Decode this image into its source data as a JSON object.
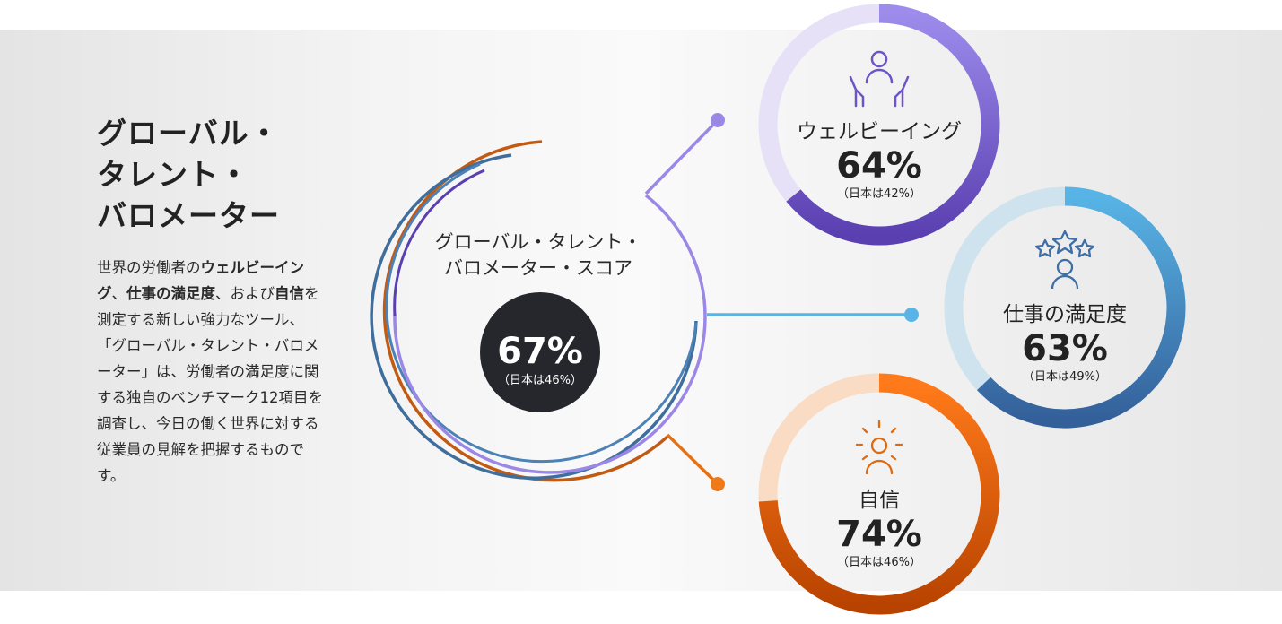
{
  "page": {
    "title": "グローバル・\nタレント・\nバロメーター",
    "description": [
      {
        "text": "世界の労働者の",
        "bold": false
      },
      {
        "text": "ウェルビーイング",
        "bold": true
      },
      {
        "text": "、",
        "bold": false
      },
      {
        "text": "仕事の満足度",
        "bold": true
      },
      {
        "text": "、および",
        "bold": false
      },
      {
        "text": "自信",
        "bold": true
      },
      {
        "text": "を測定する新しい強力なツール、「グローバル・タレント・バロメーター」は、労働者の満足度に関する独自のベンチマーク12項目を調査し、今日の働く世界に対する従業員の見解を把握するものです。",
        "bold": false
      }
    ]
  },
  "chart_data": {
    "type": "pie",
    "overall": {
      "label": "グローバル・タレント・\nバロメーター・スコア",
      "value": 67,
      "value_text": "67%",
      "japan_value": 46,
      "japan_text": "（日本は46%）"
    },
    "categories": [
      "ウェルビーイング",
      "仕事の満足度",
      "自信"
    ],
    "series": [
      {
        "name": "ウェルビーイング",
        "value": 64,
        "value_text": "64%",
        "japan_value": 42,
        "japan_text": "（日本は42%）",
        "icon": "hands-person-icon",
        "color_light": "#e6e1f6",
        "color_start": "#9d8cec",
        "color_end": "#5a3fb0"
      },
      {
        "name": "仕事の満足度",
        "value": 63,
        "value_text": "63%",
        "japan_value": 49,
        "japan_text": "（日本は49%）",
        "icon": "stars-person-icon",
        "color_light": "#cfe3ee",
        "color_start": "#58b4e6",
        "color_end": "#34609a"
      },
      {
        "name": "自信",
        "value": 74,
        "value_text": "74%",
        "japan_value": 46,
        "japan_text": "（日本は46%）",
        "icon": "radiant-person-icon",
        "color_light": "#f9dcc3",
        "color_start": "#ff7a1a",
        "color_end": "#b84300"
      }
    ]
  }
}
